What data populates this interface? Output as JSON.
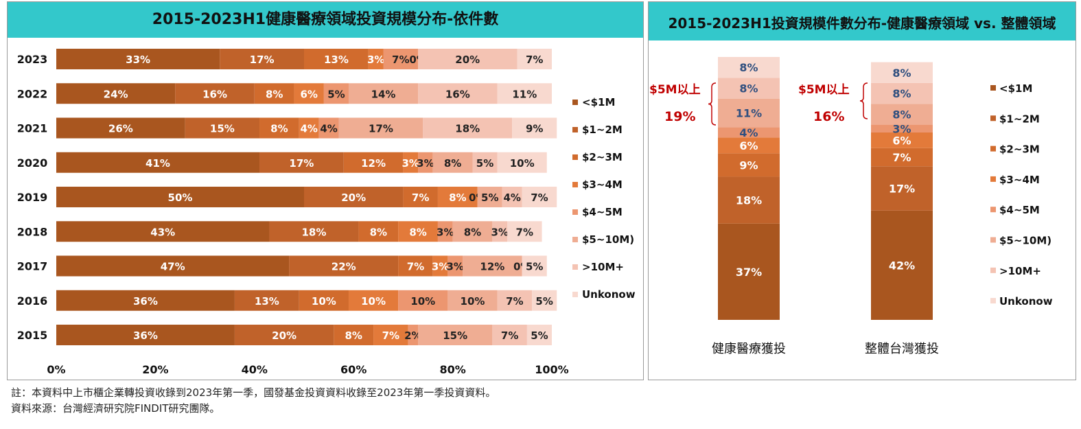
{
  "chart_data": [
    {
      "type": "bar",
      "orientation": "horizontal",
      "stacked": true,
      "title": "2015-2023H1健康醫療領域投資規模分布-依件數",
      "categories": [
        "2023",
        "2022",
        "2021",
        "2020",
        "2019",
        "2018",
        "2017",
        "2016",
        "2015"
      ],
      "series": [
        {
          "name": "<$1M",
          "color": "#a9561f",
          "values": [
            33,
            24,
            26,
            41,
            50,
            43,
            47,
            36,
            36
          ]
        },
        {
          "name": "$1~2M",
          "color": "#c0622a",
          "values": [
            17,
            16,
            15,
            17,
            20,
            18,
            22,
            13,
            20
          ]
        },
        {
          "name": "$2~3M",
          "color": "#d16b2d",
          "values": [
            13,
            8,
            8,
            12,
            7,
            8,
            7,
            10,
            8
          ]
        },
        {
          "name": "$3~4M",
          "color": "#e37a3a",
          "values": [
            3,
            6,
            4,
            3,
            8,
            8,
            3,
            10,
            7
          ]
        },
        {
          "name": "$4~5M",
          "color": "#ec9670",
          "values": [
            7,
            5,
            4,
            3,
            0,
            3,
            3,
            10,
            2
          ]
        },
        {
          "name": "$5~10M)",
          "color": "#efad93",
          "values": [
            0,
            14,
            17,
            8,
            5,
            8,
            12,
            10,
            15
          ]
        },
        {
          "name": ">10M+",
          "color": "#f4c3b3",
          "values": [
            20,
            16,
            18,
            5,
            4,
            3,
            0,
            7,
            7
          ]
        },
        {
          "name": "Unkonow",
          "color": "#f8d9cf",
          "values": [
            7,
            11,
            9,
            10,
            7,
            7,
            5,
            5,
            5
          ]
        }
      ],
      "xlim": [
        0,
        100
      ],
      "xticks": [
        "0%",
        "20%",
        "40%",
        "60%",
        "80%",
        "100%"
      ],
      "legend": "right"
    },
    {
      "type": "bar",
      "orientation": "vertical",
      "stacked": true,
      "title": "2015-2023H1投資規模件數分布-健康醫療領域 vs. 整體領域",
      "categories": [
        "健康醫療獲投",
        "整體台灣獲投"
      ],
      "series": [
        {
          "name": "<$1M",
          "color": "#a9561f",
          "values": [
            37,
            42
          ]
        },
        {
          "name": "$1~2M",
          "color": "#c0622a",
          "values": [
            18,
            17
          ]
        },
        {
          "name": "$2~3M",
          "color": "#d16b2d",
          "values": [
            9,
            7
          ]
        },
        {
          "name": "$3~4M",
          "color": "#e37a3a",
          "values": [
            6,
            6
          ]
        },
        {
          "name": "$4~5M",
          "color": "#ec9670",
          "values": [
            4,
            3
          ]
        },
        {
          "name": "$5~10M)",
          "color": "#efad93",
          "values": [
            11,
            8
          ]
        },
        {
          "name": ">10M+",
          "color": "#f4c3b3",
          "values": [
            8,
            8
          ]
        },
        {
          "name": "Unkonow",
          "color": "#f8d9cf",
          "values": [
            8,
            8
          ]
        }
      ],
      "annotations": [
        {
          "label": "$5M以上",
          "value": "19%",
          "category": "健康醫療獲投"
        },
        {
          "label": "$5M以上",
          "value": "16%",
          "category": "整體台灣獲投"
        }
      ],
      "legend": "right"
    }
  ],
  "footnotes": [
    "註：本資料中上市櫃企業轉投資收錄到2023年第一季，國發基金投資資料收錄至2023年第一季投資資料。",
    "資料來源：台灣經濟研究院FINDIT研究團隊。"
  ],
  "colors": {
    "title_bar": "#33c8cb",
    "annotation": "#c00000",
    "dark_label": "#2f4f7f"
  }
}
